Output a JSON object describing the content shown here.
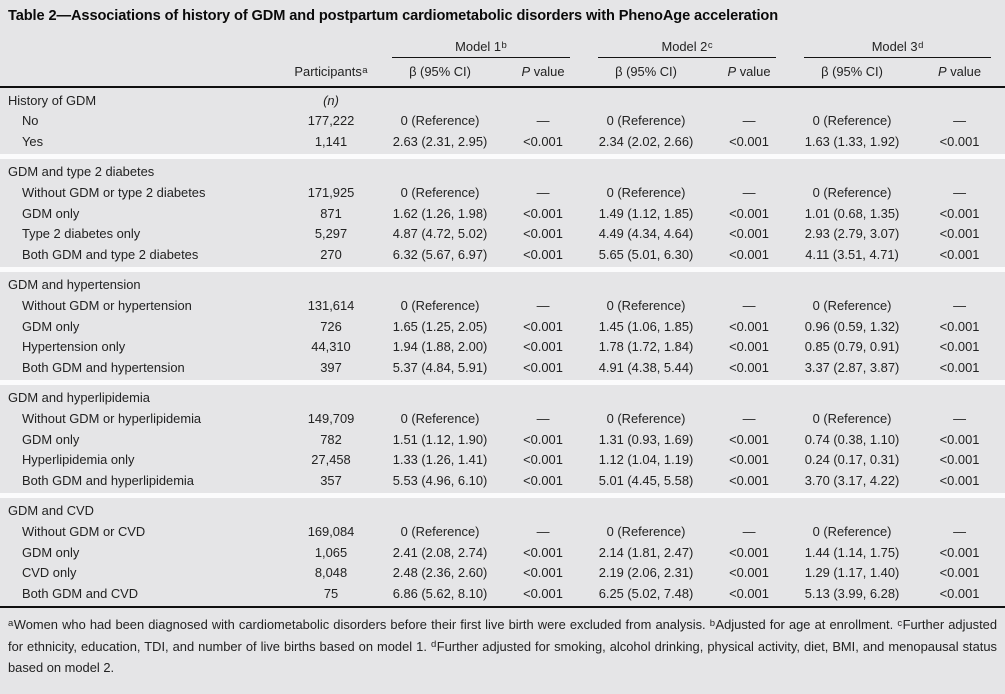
{
  "title": "Table 2—Associations of history of GDM and postpartum cardiometabolic disorders with PhenoAge acceleration",
  "header": {
    "participants_label": "Participants",
    "participants_sup": "a",
    "beta_label": "β (95% CI)",
    "p_italic": "P",
    "p_rest": " value",
    "models": [
      {
        "label": "Model 1",
        "sup": "b"
      },
      {
        "label": "Model 2",
        "sup": "c"
      },
      {
        "label": "Model 3",
        "sup": "d"
      }
    ]
  },
  "sections": [
    {
      "header": "History of GDM",
      "n_label": "(n)",
      "rows": [
        {
          "label": "No",
          "values": [
            "177,222",
            "0 (Reference)",
            "—",
            "0 (Reference)",
            "—",
            "0 (Reference)",
            "—"
          ]
        },
        {
          "label": "Yes",
          "values": [
            "1,141",
            "2.63 (2.31, 2.95)",
            "<0.001",
            "2.34 (2.02, 2.66)",
            "<0.001",
            "1.63 (1.33, 1.92)",
            "<0.001"
          ]
        }
      ]
    },
    {
      "header": "GDM and type 2 diabetes",
      "n_label": "",
      "rows": [
        {
          "label": "Without GDM or type 2 diabetes",
          "values": [
            "171,925",
            "0 (Reference)",
            "—",
            "0 (Reference)",
            "—",
            "0 (Reference)",
            "—"
          ]
        },
        {
          "label": "GDM only",
          "values": [
            "871",
            "1.62 (1.26, 1.98)",
            "<0.001",
            "1.49 (1.12, 1.85)",
            "<0.001",
            "1.01 (0.68, 1.35)",
            "<0.001"
          ]
        },
        {
          "label": "Type 2 diabetes only",
          "values": [
            "5,297",
            "4.87 (4.72, 5.02)",
            "<0.001",
            "4.49 (4.34, 4.64)",
            "<0.001",
            "2.93 (2.79, 3.07)",
            "<0.001"
          ]
        },
        {
          "label": "Both GDM and type 2 diabetes",
          "values": [
            "270",
            "6.32 (5.67, 6.97)",
            "<0.001",
            "5.65 (5.01, 6.30)",
            "<0.001",
            "4.11 (3.51, 4.71)",
            "<0.001"
          ]
        }
      ]
    },
    {
      "header": "GDM and hypertension",
      "n_label": "",
      "rows": [
        {
          "label": "Without GDM or hypertension",
          "values": [
            "131,614",
            "0 (Reference)",
            "—",
            "0 (Reference)",
            "—",
            "0 (Reference)",
            "—"
          ]
        },
        {
          "label": "GDM only",
          "values": [
            "726",
            "1.65 (1.25, 2.05)",
            "<0.001",
            "1.45 (1.06, 1.85)",
            "<0.001",
            "0.96 (0.59, 1.32)",
            "<0.001"
          ]
        },
        {
          "label": "Hypertension only",
          "values": [
            "44,310",
            "1.94 (1.88, 2.00)",
            "<0.001",
            "1.78 (1.72, 1.84)",
            "<0.001",
            "0.85 (0.79, 0.91)",
            "<0.001"
          ]
        },
        {
          "label": "Both GDM and hypertension",
          "values": [
            "397",
            "5.37 (4.84, 5.91)",
            "<0.001",
            "4.91 (4.38, 5.44)",
            "<0.001",
            "3.37 (2.87, 3.87)",
            "<0.001"
          ]
        }
      ]
    },
    {
      "header": "GDM and hyperlipidemia",
      "n_label": "",
      "rows": [
        {
          "label": "Without GDM or hyperlipidemia",
          "values": [
            "149,709",
            "0 (Reference)",
            "—",
            "0 (Reference)",
            "—",
            "0 (Reference)",
            "—"
          ]
        },
        {
          "label": "GDM only",
          "values": [
            "782",
            "1.51 (1.12, 1.90)",
            "<0.001",
            "1.31 (0.93, 1.69)",
            "<0.001",
            "0.74 (0.38, 1.10)",
            "<0.001"
          ]
        },
        {
          "label": "Hyperlipidemia only",
          "values": [
            "27,458",
            "1.33 (1.26, 1.41)",
            "<0.001",
            "1.12 (1.04, 1.19)",
            "<0.001",
            "0.24 (0.17, 0.31)",
            "<0.001"
          ]
        },
        {
          "label": "Both GDM and hyperlipidemia",
          "values": [
            "357",
            "5.53 (4.96, 6.10)",
            "<0.001",
            "5.01 (4.45, 5.58)",
            "<0.001",
            "3.70 (3.17, 4.22)",
            "<0.001"
          ]
        }
      ]
    },
    {
      "header": "GDM and CVD",
      "n_label": "",
      "rows": [
        {
          "label": "Without GDM or CVD",
          "values": [
            "169,084",
            "0 (Reference)",
            "—",
            "0 (Reference)",
            "—",
            "0 (Reference)",
            "—"
          ]
        },
        {
          "label": "GDM only",
          "values": [
            "1,065",
            "2.41 (2.08, 2.74)",
            "<0.001",
            "2.14 (1.81, 2.47)",
            "<0.001",
            "1.44 (1.14, 1.75)",
            "<0.001"
          ]
        },
        {
          "label": "CVD only",
          "values": [
            "8,048",
            "2.48 (2.36, 2.60)",
            "<0.001",
            "2.19 (2.06, 2.31)",
            "<0.001",
            "1.29 (1.17, 1.40)",
            "<0.001"
          ]
        },
        {
          "label": "Both GDM and CVD",
          "values": [
            "75",
            "6.86 (5.62, 8.10)",
            "<0.001",
            "6.25 (5.02, 7.48)",
            "<0.001",
            "5.13 (3.99, 6.28)",
            "<0.001"
          ]
        }
      ]
    }
  ],
  "footnotes": [
    {
      "sup": "a",
      "text": "Women who had been diagnosed with cardiometabolic disorders before their first live birth were excluded from analysis."
    },
    {
      "sup": "b",
      "text": "Adjusted for age at enrollment."
    },
    {
      "sup": "c",
      "text": "Further adjusted for ethnicity, education, TDI, and number of live births based on model 1."
    },
    {
      "sup": "d",
      "text": "Further adjusted for smoking, alcohol drinking, physical activity, diet, BMI, and menopausal status based on model 2."
    }
  ],
  "colors": {
    "background": "#e5e5e7",
    "section_divider": "#fbfbfc",
    "rule": "#101010",
    "text": "#222222"
  }
}
